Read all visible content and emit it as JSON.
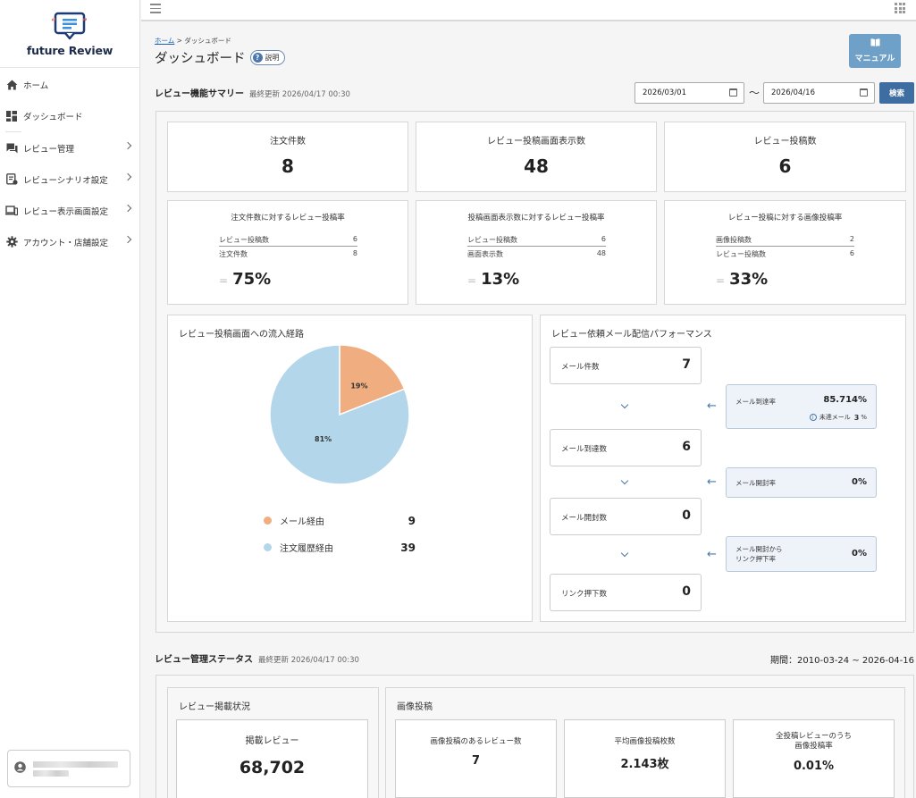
{
  "app": {
    "logo_text": "future Review"
  },
  "sidebar": {
    "items": [
      {
        "label": "ホーム",
        "icon": "home-icon",
        "has_submenu": false
      },
      {
        "label": "ダッシュボード",
        "icon": "dashboard-icon",
        "has_submenu": false
      },
      {
        "label": "レビュー管理",
        "icon": "review-icon",
        "has_submenu": true
      },
      {
        "label": "レビューシナリオ設定",
        "icon": "scenario-icon",
        "has_submenu": true
      },
      {
        "label": "レビュー表示画面設定",
        "icon": "devices-icon",
        "has_submenu": true
      },
      {
        "label": "アカウント・店舗設定",
        "icon": "gear-icon",
        "has_submenu": true
      }
    ]
  },
  "header": {
    "breadcrumb_home": "ホーム",
    "breadcrumb_sep": ">",
    "breadcrumb_current": "ダッシュボード",
    "title": "ダッシュボード",
    "help_label": "説明",
    "manual_label": "マニュアル"
  },
  "summary": {
    "title": "レビュー機能サマリー",
    "updated": "最終更新 2026/04/17 00:30",
    "date_from": "2026/03/01",
    "date_to": "2026/04/16",
    "tilde": "〜",
    "search_label": "検索",
    "stats": [
      {
        "label": "注文件数",
        "value": "8"
      },
      {
        "label": "レビュー投稿画面表示数",
        "value": "48"
      },
      {
        "label": "レビュー投稿数",
        "value": "6"
      }
    ],
    "rates": [
      {
        "title": "注文件数に対するレビュー投稿率",
        "num_label": "レビュー投稿数",
        "num_value": "6",
        "den_label": "注文件数",
        "den_value": "8",
        "eq": "=",
        "result": "75%"
      },
      {
        "title": "投稿画面表示数に対するレビュー投稿率",
        "num_label": "レビュー投稿数",
        "num_value": "6",
        "den_label": "画面表示数",
        "den_value": "48",
        "eq": "=",
        "result": "13%"
      },
      {
        "title": "レビュー投稿に対する画像投稿率",
        "num_label": "画像投稿数",
        "num_value": "2",
        "den_label": "レビュー投稿数",
        "den_value": "6",
        "eq": "=",
        "result": "33%"
      }
    ]
  },
  "inflow": {
    "title": "レビュー投稿画面への流入経路",
    "legend": [
      {
        "label": "メール経由",
        "value": "9"
      },
      {
        "label": "注文履歴経由",
        "value": "39"
      }
    ]
  },
  "chart_data": {
    "type": "pie",
    "categories": [
      "メール経由",
      "注文履歴経由"
    ],
    "values": [
      19,
      81
    ],
    "counts": [
      9,
      39
    ],
    "labels": [
      "19%",
      "81%"
    ],
    "colors": [
      "#f0ad7f",
      "#b3d6ea"
    ]
  },
  "mail": {
    "title": "レビュー依頼メール配信パフォーマンス",
    "steps": [
      {
        "label": "メール件数",
        "value": "7"
      },
      {
        "label": "メール到達数",
        "value": "6"
      },
      {
        "label": "メール開封数",
        "value": "0"
      },
      {
        "label": "リンク押下数",
        "value": "0"
      }
    ],
    "rates": [
      {
        "label": "メール到達率",
        "value": "85.714%",
        "note_label": "未達メール",
        "note_value": "3",
        "note_unit": "%"
      },
      {
        "label": "メール開封率",
        "value": "0%"
      },
      {
        "label": "メール開封から",
        "label2": "リンク押下率",
        "value": "0%"
      }
    ]
  },
  "status": {
    "title": "レビュー管理ステータス",
    "updated": "最終更新 2026/04/17 00:30",
    "period": "期間：2010-03-24 ~ 2026-04-16",
    "publish": {
      "title": "レビュー掲載状況",
      "card_label": "掲載レビュー",
      "card_value": "68,702"
    },
    "image": {
      "title": "画像投稿",
      "cards": [
        {
          "label": "画像投稿のあるレビュー数",
          "value": "7"
        },
        {
          "label": "平均画像投稿枚数",
          "value": "2.143枚"
        },
        {
          "label": "全投稿レビューのうち",
          "label2": "画像投稿率",
          "value": "0.01%"
        }
      ]
    }
  },
  "colors": {
    "accent": "#3e6ea1",
    "manual_button": "#6ea0c8",
    "pie_mail": "#f0ad7f",
    "pie_order": "#b3d6ea"
  }
}
